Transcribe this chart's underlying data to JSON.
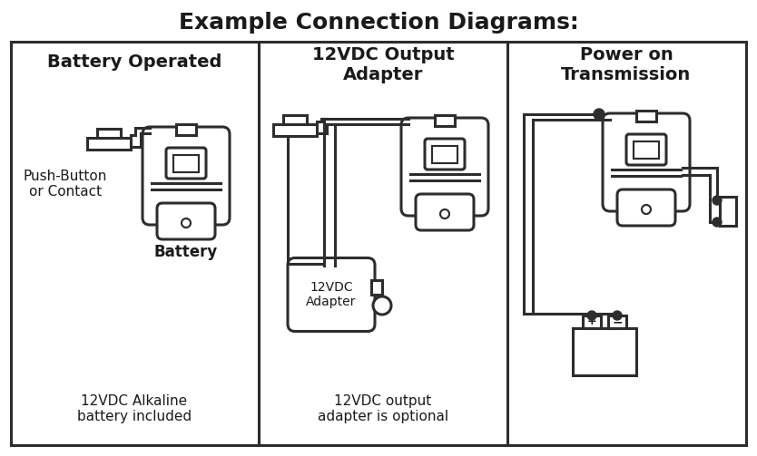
{
  "title": "Example Connection Diagrams:",
  "bg_color": "#ffffff",
  "line_color": "#2d2d2d",
  "text_color": "#1a1a1a",
  "panel1_title": "Battery Operated",
  "panel2_title": "12VDC Output\nAdapter",
  "panel3_title": "Power on\nTransmission",
  "panel1_bottom": "12VDC Alkaline\nbattery included",
  "panel2_bottom": "12VDC output\nadapter is optional",
  "label_pushbutton": "Push-Button\nor Contact",
  "label_battery1": "Battery",
  "label_adapter": "12VDC\nAdapter",
  "title_fontsize": 18,
  "panel_title_fontsize": 14,
  "body_fontsize": 11,
  "lw": 2.2
}
